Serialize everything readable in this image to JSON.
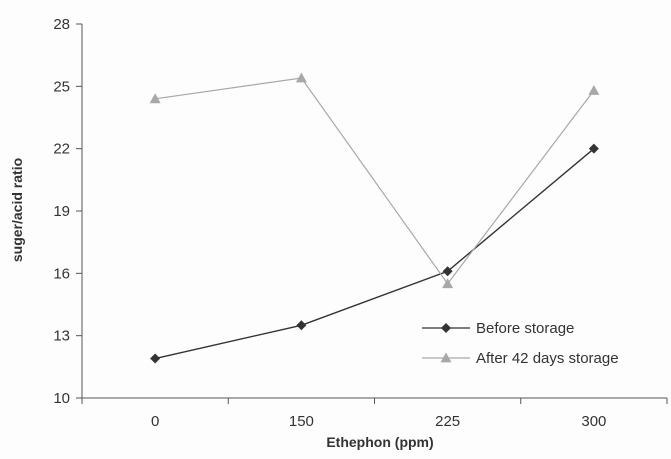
{
  "chart_data": {
    "type": "line",
    "xlabel": "Ethephon (ppm)",
    "ylabel": "suger/acid ratio",
    "categories": [
      "0",
      "150",
      "225",
      "300"
    ],
    "ylim": [
      10,
      28
    ],
    "yticks": [
      10,
      13,
      16,
      19,
      22,
      25,
      28
    ],
    "grid": false,
    "legend_position": "bottom-right",
    "series": [
      {
        "name": "Before storage",
        "values": [
          11.9,
          13.5,
          16.1,
          22.0
        ],
        "color": "#333333",
        "marker": "diamond"
      },
      {
        "name": "After 42 days storage",
        "values": [
          24.4,
          25.4,
          15.5,
          24.8
        ],
        "color": "#a8a8a8",
        "marker": "triangle"
      }
    ]
  }
}
